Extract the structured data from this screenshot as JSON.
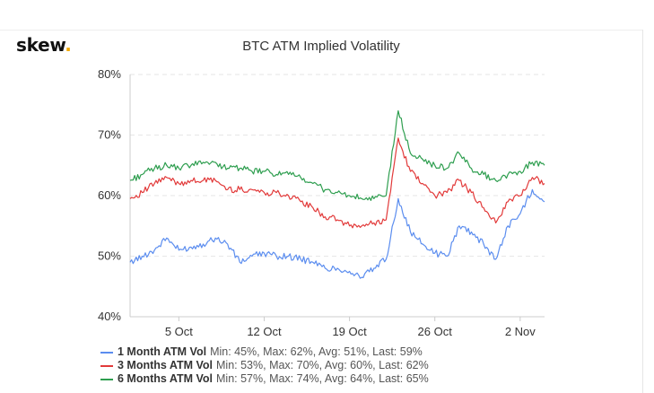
{
  "logo": {
    "text": "skew",
    "dot": ".",
    "dot_color": "#f2a900"
  },
  "chart_data": {
    "type": "line",
    "title": "BTC ATM Implied Volatility",
    "xlabel": "",
    "ylabel": "",
    "x_unit": "day",
    "xlim": [
      "2020-10-01",
      "2020-11-04"
    ],
    "x_ticks": [
      "5 Oct",
      "12 Oct",
      "19 Oct",
      "26 Oct",
      "2 Nov"
    ],
    "x_tick_dates": [
      "2020-10-05",
      "2020-10-12",
      "2020-10-19",
      "2020-10-26",
      "2020-11-02"
    ],
    "ylim": [
      40,
      80
    ],
    "y_ticks": [
      "80%",
      "70%",
      "60%",
      "50%",
      "40%"
    ],
    "y_tick_values": [
      80,
      70,
      60,
      50,
      40
    ],
    "grid": true,
    "legend_position": "bottom-left",
    "series": [
      {
        "name": "1 Month ATM Vol",
        "color": "#5b8def",
        "stats": "Min: 45%, Max: 62%, Avg: 51%, Last: 59%",
        "points": [
          [
            "2020-10-01",
            49
          ],
          [
            "2020-10-02",
            50
          ],
          [
            "2020-10-03",
            51
          ],
          [
            "2020-10-04",
            53
          ],
          [
            "2020-10-05",
            51
          ],
          [
            "2020-10-06",
            51.5
          ],
          [
            "2020-10-07",
            52
          ],
          [
            "2020-10-08",
            53
          ],
          [
            "2020-10-09",
            52
          ],
          [
            "2020-10-10",
            49
          ],
          [
            "2020-10-11",
            50
          ],
          [
            "2020-10-12",
            50.5
          ],
          [
            "2020-10-13",
            50
          ],
          [
            "2020-10-14",
            50
          ],
          [
            "2020-10-15",
            49.5
          ],
          [
            "2020-10-16",
            49
          ],
          [
            "2020-10-17",
            48
          ],
          [
            "2020-10-18",
            48
          ],
          [
            "2020-10-19",
            47.5
          ],
          [
            "2020-10-20",
            46.5
          ],
          [
            "2020-10-21",
            48
          ],
          [
            "2020-10-22",
            49.5
          ],
          [
            "2020-10-23",
            59.5
          ],
          [
            "2020-10-24",
            54
          ],
          [
            "2020-10-25",
            52
          ],
          [
            "2020-10-26",
            50.5
          ],
          [
            "2020-10-27",
            50
          ],
          [
            "2020-10-28",
            55
          ],
          [
            "2020-10-29",
            54
          ],
          [
            "2020-10-30",
            52
          ],
          [
            "2020-10-31",
            49.5
          ],
          [
            "2020-11-01",
            55
          ],
          [
            "2020-11-02",
            57
          ],
          [
            "2020-11-03",
            61
          ],
          [
            "2020-11-04",
            59
          ]
        ]
      },
      {
        "name": "3 Months ATM Vol",
        "color": "#e23a3a",
        "stats": "Min: 53%, Max: 70%, Avg: 60%, Last: 62%",
        "points": [
          [
            "2020-10-01",
            59.5
          ],
          [
            "2020-10-02",
            60.5
          ],
          [
            "2020-10-03",
            62
          ],
          [
            "2020-10-04",
            63
          ],
          [
            "2020-10-05",
            62
          ],
          [
            "2020-10-06",
            62.5
          ],
          [
            "2020-10-07",
            62.5
          ],
          [
            "2020-10-08",
            62.5
          ],
          [
            "2020-10-09",
            61
          ],
          [
            "2020-10-10",
            61
          ],
          [
            "2020-10-11",
            61
          ],
          [
            "2020-10-12",
            60.5
          ],
          [
            "2020-10-13",
            60.5
          ],
          [
            "2020-10-14",
            60
          ],
          [
            "2020-10-15",
            59
          ],
          [
            "2020-10-16",
            58
          ],
          [
            "2020-10-17",
            56.5
          ],
          [
            "2020-10-18",
            56
          ],
          [
            "2020-10-19",
            55
          ],
          [
            "2020-10-20",
            55
          ],
          [
            "2020-10-21",
            55.5
          ],
          [
            "2020-10-22",
            56
          ],
          [
            "2020-10-23",
            69.5
          ],
          [
            "2020-10-24",
            64
          ],
          [
            "2020-10-25",
            62
          ],
          [
            "2020-10-26",
            60
          ],
          [
            "2020-10-27",
            60.5
          ],
          [
            "2020-10-28",
            62.5
          ],
          [
            "2020-10-29",
            60.5
          ],
          [
            "2020-10-30",
            58
          ],
          [
            "2020-10-31",
            55.5
          ],
          [
            "2020-11-01",
            59
          ],
          [
            "2020-11-02",
            60
          ],
          [
            "2020-11-03",
            63
          ],
          [
            "2020-11-04",
            62
          ]
        ]
      },
      {
        "name": "6 Months ATM Vol",
        "color": "#2e9e4f",
        "stats": "Min: 57%, Max: 74%, Avg: 64%, Last: 65%",
        "points": [
          [
            "2020-10-01",
            62.5
          ],
          [
            "2020-10-02",
            63.5
          ],
          [
            "2020-10-03",
            64.5
          ],
          [
            "2020-10-04",
            65
          ],
          [
            "2020-10-05",
            64.5
          ],
          [
            "2020-10-06",
            65
          ],
          [
            "2020-10-07",
            65.5
          ],
          [
            "2020-10-08",
            65.5
          ],
          [
            "2020-10-09",
            64.5
          ],
          [
            "2020-10-10",
            64.5
          ],
          [
            "2020-10-11",
            64
          ],
          [
            "2020-10-12",
            64
          ],
          [
            "2020-10-13",
            63.5
          ],
          [
            "2020-10-14",
            63.5
          ],
          [
            "2020-10-15",
            63
          ],
          [
            "2020-10-16",
            62
          ],
          [
            "2020-10-17",
            61
          ],
          [
            "2020-10-18",
            60.5
          ],
          [
            "2020-10-19",
            60
          ],
          [
            "2020-10-20",
            59.5
          ],
          [
            "2020-10-21",
            59.5
          ],
          [
            "2020-10-22",
            60
          ],
          [
            "2020-10-23",
            74
          ],
          [
            "2020-10-24",
            67
          ],
          [
            "2020-10-25",
            66
          ],
          [
            "2020-10-26",
            65
          ],
          [
            "2020-10-27",
            64.5
          ],
          [
            "2020-10-28",
            67
          ],
          [
            "2020-10-29",
            64.5
          ],
          [
            "2020-10-30",
            63.5
          ],
          [
            "2020-10-31",
            62.5
          ],
          [
            "2020-11-01",
            63.5
          ],
          [
            "2020-11-02",
            64
          ],
          [
            "2020-11-03",
            65.5
          ],
          [
            "2020-11-04",
            65
          ]
        ]
      }
    ]
  }
}
